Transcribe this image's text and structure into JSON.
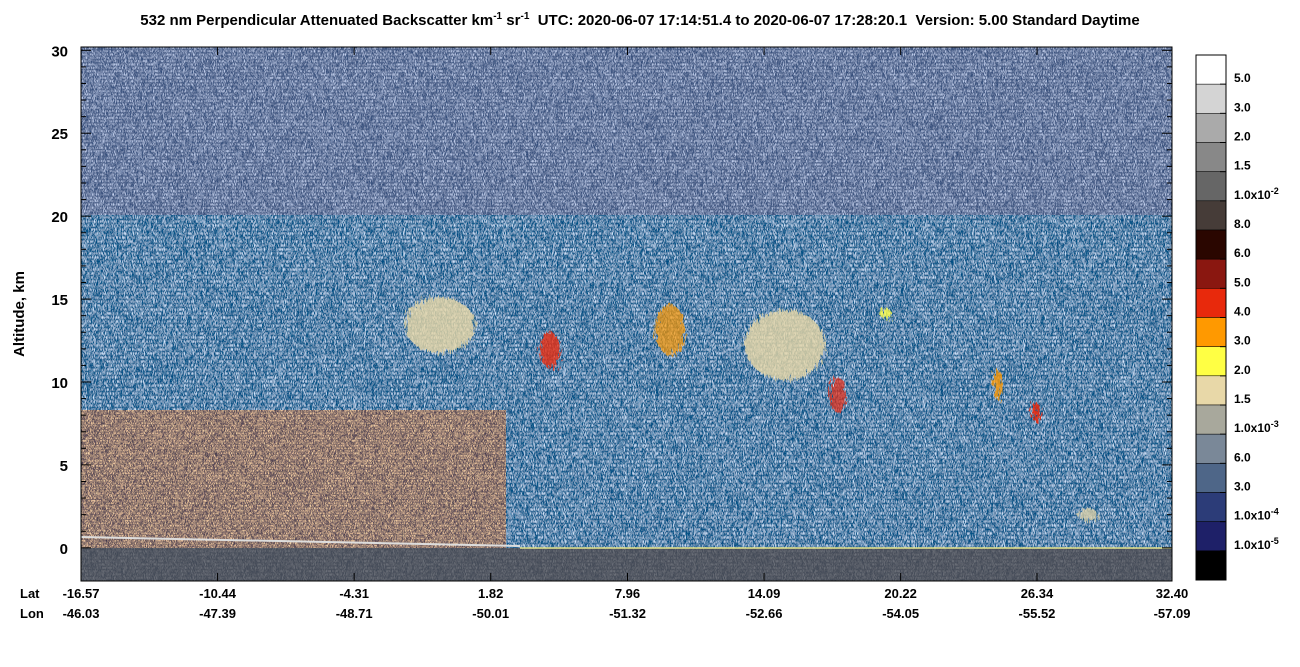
{
  "chart_data": {
    "type": "curtain",
    "title": [
      "532 nm Perpendicular Attenuated Backscatter km",
      "-1",
      " sr",
      "-1",
      "  UTC: 2020-06-07 17:14:51.4 to 2020-06-07 17:28:20.1  Version: 5.00 Standard Daytime"
    ],
    "ylabel": "Altitude, km",
    "ylim": [
      -2,
      30.2
    ],
    "yticks": [
      0,
      5,
      10,
      15,
      20,
      25,
      30
    ],
    "xlim": [
      -16.57,
      {
        "value": 32.4,
        "label": "32.40"
      }
    ],
    "x_row_names": [
      "Lat",
      "Lon"
    ],
    "xticks": [
      -16.57,
      -10.44,
      -4.31,
      1.82,
      7.96,
      14.09,
      20.22,
      26.34,
      {
        "value": 32.4,
        "label": "32.40"
      }
    ],
    "lon_labels": [
      -46.03,
      -47.39,
      -48.71,
      -50.01,
      -51.32,
      -52.66,
      -54.05,
      -55.52,
      -57.09
    ],
    "colorbar": {
      "colors": [
        "#ffffff",
        "#d4d4d4",
        "#aaaaaa",
        "#888888",
        "#666666",
        "#463c38",
        "#2a0600",
        "#8a1710",
        "#e8290c",
        "#ff9900",
        "#ffff44",
        "#e8d8a8",
        "#a8a89c",
        "#7a8898",
        "#4e6688",
        "#2c3c78",
        "#1e2068",
        "#000000"
      ],
      "labels": [
        {
          "text": "5.0"
        },
        {
          "text": "3.0"
        },
        {
          "text": "2.0"
        },
        {
          "text": "1.5"
        },
        {
          "text": "1.0x10",
          "exp": "-2"
        },
        {
          "text": "8.0"
        },
        {
          "text": "6.0"
        },
        {
          "text": "5.0"
        },
        {
          "text": "4.0"
        },
        {
          "text": "3.0"
        },
        {
          "text": "2.0"
        },
        {
          "text": "1.5"
        },
        {
          "text": "1.0x10",
          "exp": "-3"
        },
        {
          "text": "6.0"
        },
        {
          "text": "3.0"
        },
        {
          "text": "1.0x10",
          "exp": "-4"
        },
        {
          "text": "1.0x10",
          "exp": "-5"
        }
      ]
    }
  }
}
